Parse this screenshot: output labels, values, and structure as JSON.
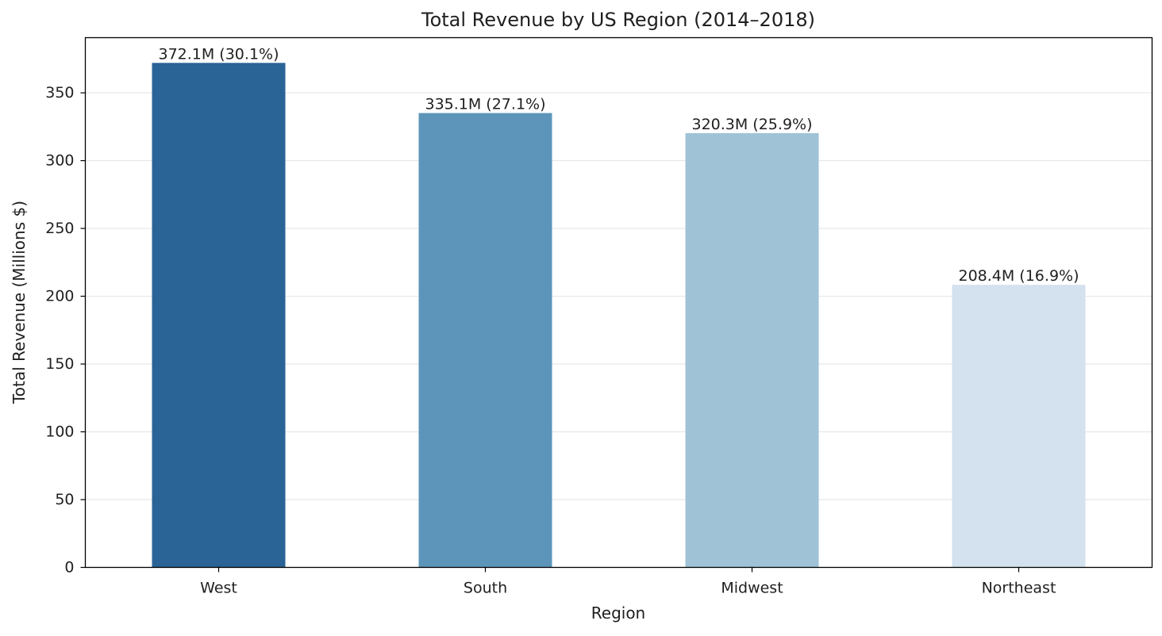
{
  "chart_data": {
    "type": "bar",
    "title": "Total Revenue by US Region (2014–2018)",
    "xlabel": "Region",
    "ylabel": "Total Revenue (Millions $)",
    "categories": [
      "West",
      "South",
      "Midwest",
      "Northeast"
    ],
    "values": [
      372.1,
      335.1,
      320.3,
      208.4
    ],
    "data_labels": [
      "372.1M (30.1%)",
      "335.1M (27.1%)",
      "320.3M (25.9%)",
      "208.4M (16.9%)"
    ],
    "bar_colors": [
      "#2a6396",
      "#5d95ba",
      "#9fc2d6",
      "#d4e1ef"
    ],
    "yticks": [
      0,
      50,
      100,
      150,
      200,
      250,
      300,
      350
    ],
    "ylim": [
      0,
      390.7
    ],
    "grid": "y",
    "legend": "none"
  }
}
